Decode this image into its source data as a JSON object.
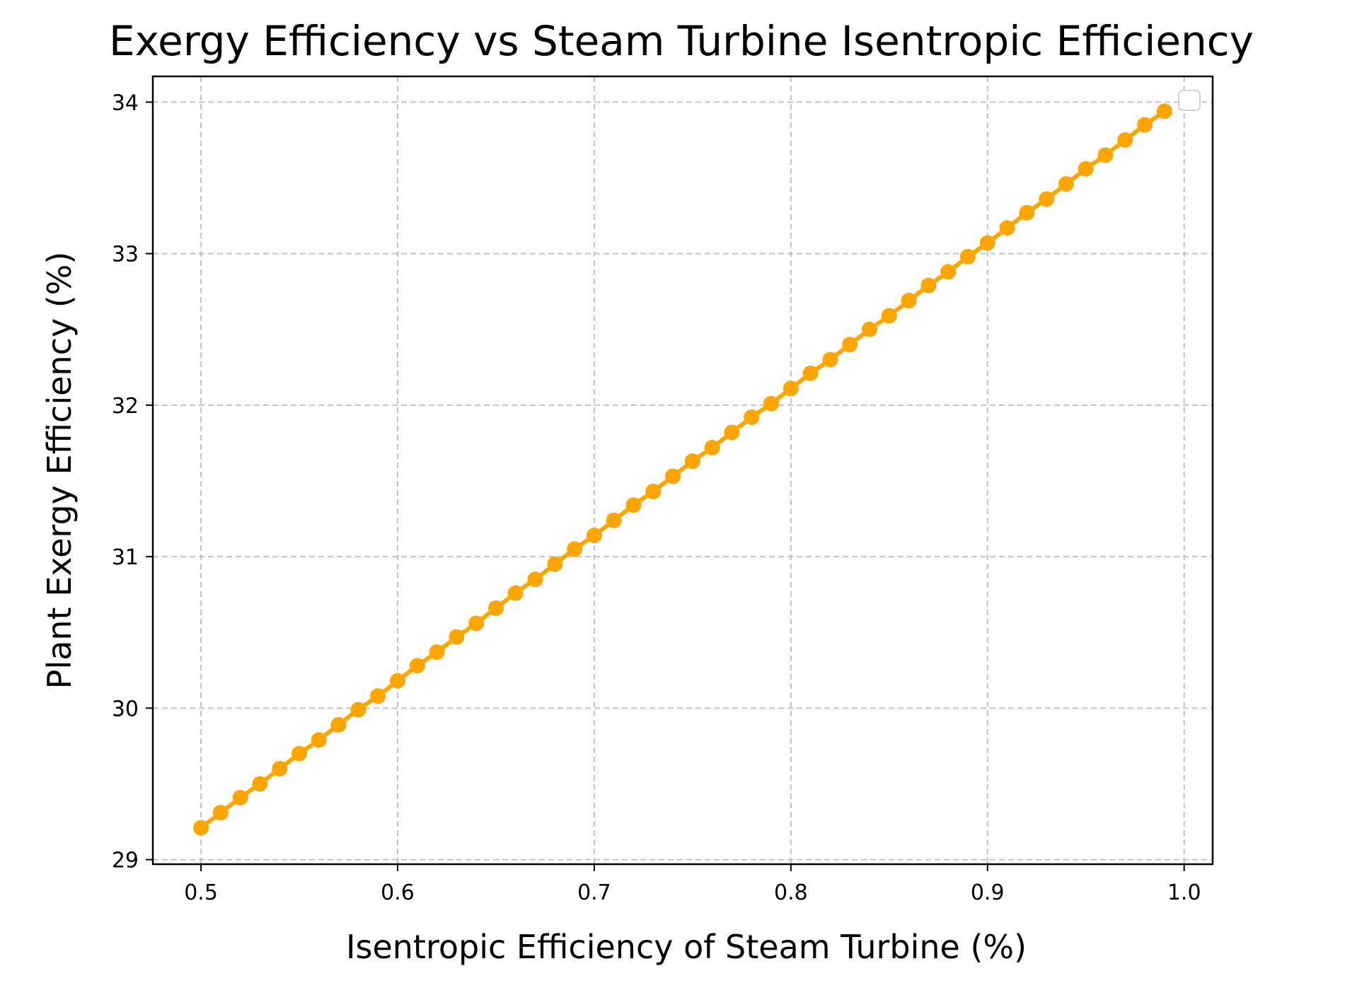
{
  "chart_data": {
    "type": "line",
    "title": "Exergy Efficiency vs Steam Turbine Isentropic Efficiency",
    "xlabel": "Isentropic Efficiency of Steam Turbine (%)",
    "ylabel": "Plant Exergy Efficiency (%)",
    "xlim": [
      0.4755,
      1.0145
    ],
    "ylim": [
      28.97,
      34.17
    ],
    "x_ticks": [
      "0.5",
      "0.6",
      "0.7",
      "0.8",
      "0.9",
      "1.0"
    ],
    "y_ticks": [
      "29",
      "30",
      "31",
      "32",
      "33",
      "34"
    ],
    "grid": true,
    "legend": "upper right (empty)",
    "series": [
      {
        "color": "#FFA500",
        "marker": "circle",
        "x": [
          0.5,
          0.51,
          0.52,
          0.53,
          0.54,
          0.55,
          0.56,
          0.57,
          0.58,
          0.59,
          0.6,
          0.61,
          0.62,
          0.63,
          0.64,
          0.65,
          0.66,
          0.67,
          0.68,
          0.69,
          0.7,
          0.71,
          0.72,
          0.73,
          0.74,
          0.75,
          0.76,
          0.77,
          0.78,
          0.79,
          0.8,
          0.81,
          0.82,
          0.83,
          0.84,
          0.85,
          0.86,
          0.87,
          0.88,
          0.89,
          0.9,
          0.91,
          0.92,
          0.93,
          0.94,
          0.95,
          0.96,
          0.97,
          0.98,
          0.99
        ],
        "values": [
          29.21,
          29.31,
          29.41,
          29.5,
          29.6,
          29.7,
          29.79,
          29.89,
          29.99,
          30.08,
          30.18,
          30.28,
          30.37,
          30.47,
          30.56,
          30.66,
          30.76,
          30.85,
          30.95,
          31.05,
          31.14,
          31.24,
          31.34,
          31.43,
          31.53,
          31.63,
          31.72,
          31.82,
          31.92,
          32.01,
          32.11,
          32.21,
          32.3,
          32.4,
          32.5,
          32.59,
          32.69,
          32.79,
          32.88,
          32.98,
          33.07,
          33.17,
          33.27,
          33.36,
          33.46,
          33.56,
          33.65,
          33.75,
          33.85,
          33.94
        ]
      }
    ]
  }
}
